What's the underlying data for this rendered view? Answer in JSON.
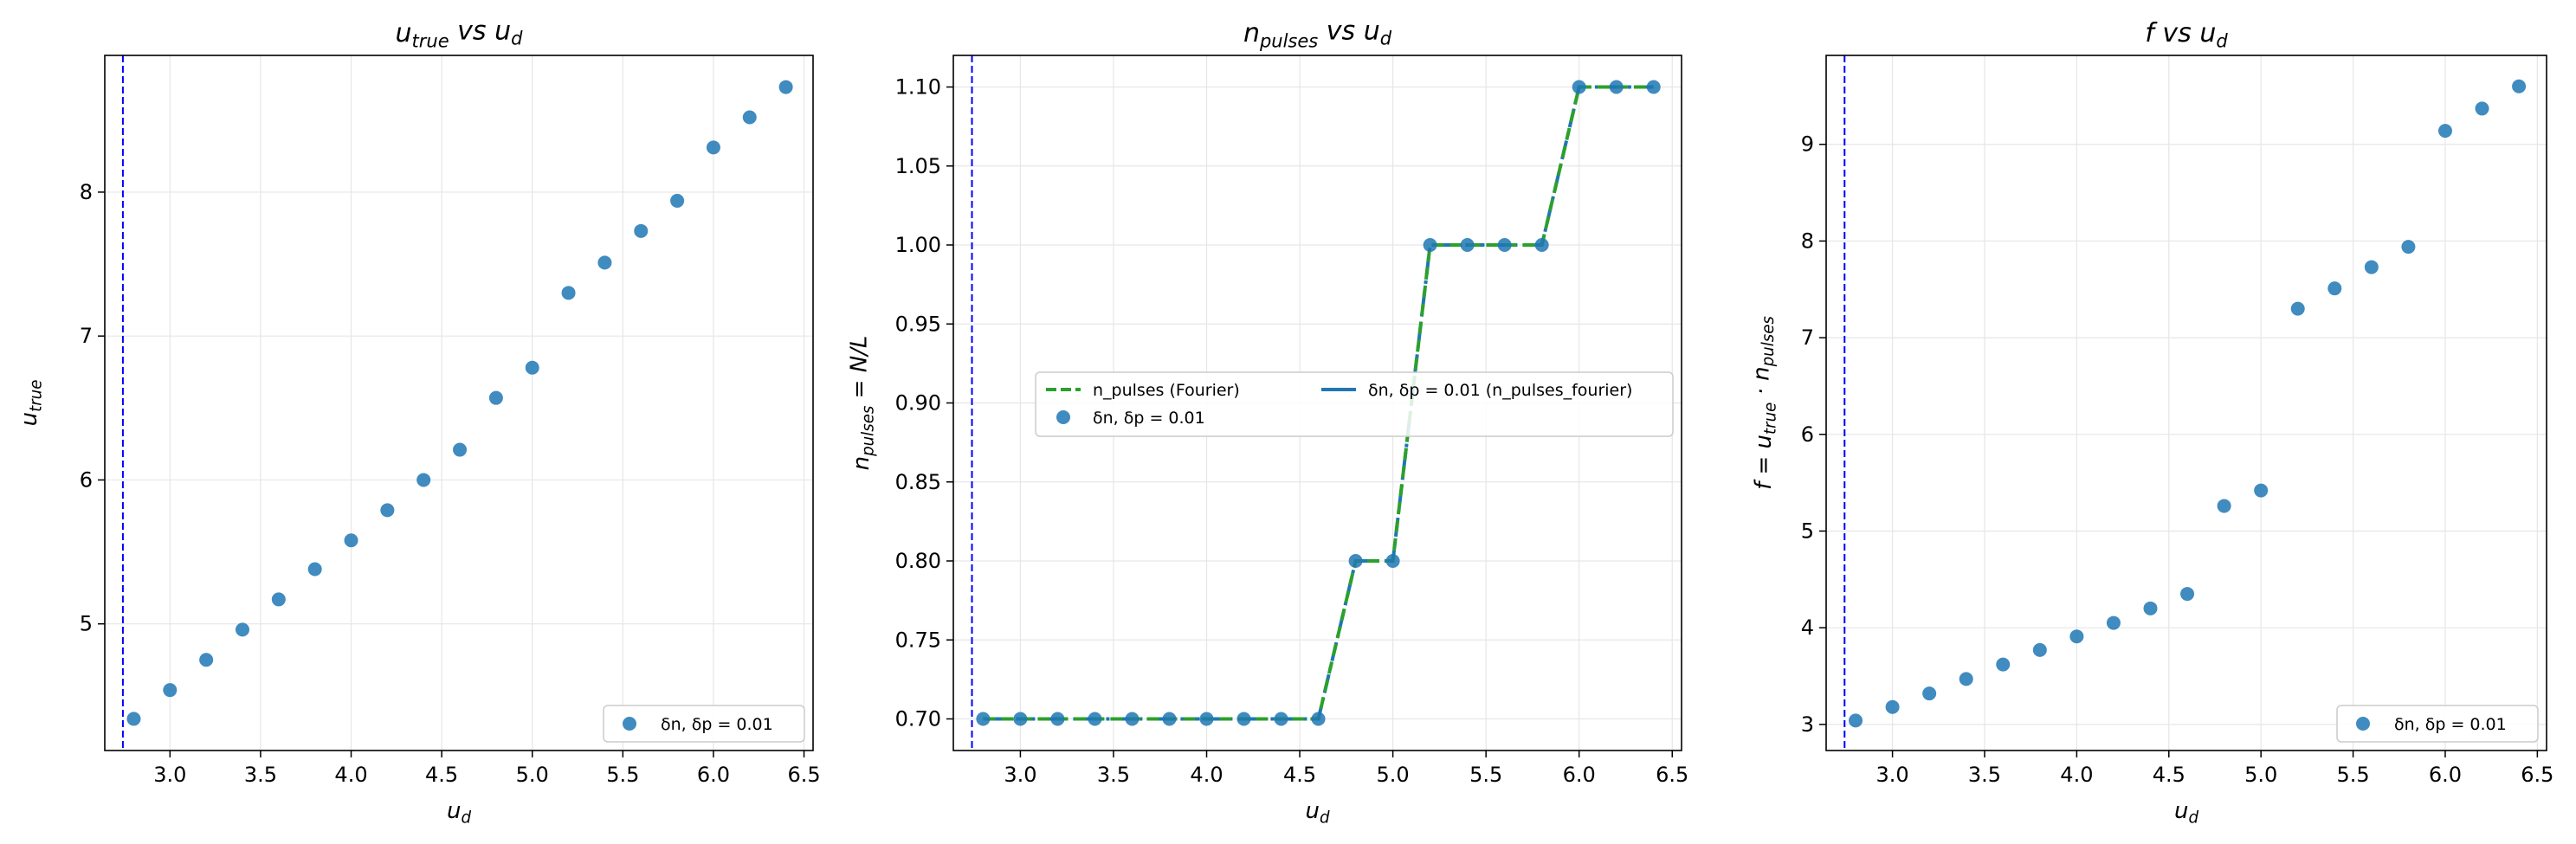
{
  "colors": {
    "scatter": "#1f77b4",
    "fourier": "#2ca02c",
    "vline": "#0000ff",
    "grid": "#e6e6e6"
  },
  "chart_data": [
    {
      "type": "scatter",
      "title": {
        "main": "u",
        "sub": "true",
        "rest": " vs u",
        "sub2": "d"
      },
      "xlabel": {
        "main": "u",
        "sub": "d"
      },
      "ylabel": {
        "main": "u",
        "sub": "true"
      },
      "xlim": [
        2.64,
        6.55
      ],
      "ylim": [
        4.12,
        8.95
      ],
      "xticks": [
        3.0,
        3.5,
        4.0,
        4.5,
        5.0,
        5.5,
        6.0,
        6.5
      ],
      "yticks": [
        5,
        6,
        7,
        8
      ],
      "xtick_labels": [
        "3.0",
        "3.5",
        "4.0",
        "4.5",
        "5.0",
        "5.5",
        "6.0",
        "6.5"
      ],
      "ytick_labels": [
        "5",
        "6",
        "7",
        "8"
      ],
      "vline_x": 2.74,
      "grid": true,
      "legend_position": "lower right",
      "series": [
        {
          "name": "δn, δp = 0.01",
          "x": [
            2.8,
            3.0,
            3.2,
            3.4,
            3.6,
            3.8,
            4.0,
            4.2,
            4.4,
            4.6,
            4.8,
            5.0,
            5.2,
            5.4,
            5.6,
            5.8,
            6.0,
            6.2,
            6.4
          ],
          "y": [
            4.34,
            4.54,
            4.75,
            4.96,
            5.17,
            5.38,
            5.58,
            5.79,
            6.0,
            6.21,
            6.57,
            6.78,
            7.3,
            7.51,
            7.73,
            7.94,
            8.31,
            8.52,
            8.73
          ]
        }
      ]
    },
    {
      "type": "line",
      "title": {
        "main": "n",
        "sub": "pulses",
        "rest": " vs u",
        "sub2": "d"
      },
      "xlabel": {
        "main": "u",
        "sub": "d"
      },
      "ylabel": {
        "main": "n",
        "sub": "pulses",
        "rest": " = N/L"
      },
      "xlim": [
        2.64,
        6.55
      ],
      "ylim": [
        0.68,
        1.12
      ],
      "xticks": [
        3.0,
        3.5,
        4.0,
        4.5,
        5.0,
        5.5,
        6.0,
        6.5
      ],
      "yticks": [
        0.7,
        0.75,
        0.8,
        0.85,
        0.9,
        0.95,
        1.0,
        1.05,
        1.1
      ],
      "xtick_labels": [
        "3.0",
        "3.5",
        "4.0",
        "4.5",
        "5.0",
        "5.5",
        "6.0",
        "6.5"
      ],
      "ytick_labels": [
        "0.70",
        "0.75",
        "0.80",
        "0.85",
        "0.90",
        "0.95",
        "1.00",
        "1.05",
        "1.10"
      ],
      "vline_x": 2.74,
      "grid": true,
      "legend_position": "center",
      "legend_labels": {
        "fourier": "n_pulses (Fourier)",
        "line": "δn, δp = 0.01 (n_pulses_fourier)",
        "scatter": "δn, δp = 0.01"
      },
      "x": [
        2.8,
        3.0,
        3.2,
        3.4,
        3.6,
        3.8,
        4.0,
        4.2,
        4.4,
        4.6,
        4.8,
        5.0,
        5.2,
        5.4,
        5.6,
        5.8,
        6.0,
        6.2,
        6.4
      ],
      "y": [
        0.7,
        0.7,
        0.7,
        0.7,
        0.7,
        0.7,
        0.7,
        0.7,
        0.7,
        0.7,
        0.8,
        0.8,
        1.0,
        1.0,
        1.0,
        1.0,
        1.1,
        1.1,
        1.1
      ]
    },
    {
      "type": "scatter",
      "title": {
        "main": "f",
        "sub": "",
        "rest": " vs u",
        "sub2": "d"
      },
      "xlabel": {
        "main": "u",
        "sub": "d"
      },
      "ylabel": {
        "main": "f = u",
        "sub": "true",
        "rest": " · n",
        "sub2": "pulses"
      },
      "xlim": [
        2.64,
        6.55
      ],
      "ylim": [
        2.73,
        9.92
      ],
      "xticks": [
        3.0,
        3.5,
        4.0,
        4.5,
        5.0,
        5.5,
        6.0,
        6.5
      ],
      "yticks": [
        3,
        4,
        5,
        6,
        7,
        8,
        9
      ],
      "xtick_labels": [
        "3.0",
        "3.5",
        "4.0",
        "4.5",
        "5.0",
        "5.5",
        "6.0",
        "6.5"
      ],
      "ytick_labels": [
        "3",
        "4",
        "5",
        "6",
        "7",
        "8",
        "9"
      ],
      "vline_x": 2.74,
      "grid": true,
      "legend_position": "lower right",
      "series": [
        {
          "name": "δn, δp = 0.01",
          "x": [
            2.8,
            3.0,
            3.2,
            3.4,
            3.6,
            3.8,
            4.0,
            4.2,
            4.4,
            4.6,
            4.8,
            5.0,
            5.2,
            5.4,
            5.6,
            5.8,
            6.0,
            6.2,
            6.4
          ],
          "y": [
            3.04,
            3.18,
            3.32,
            3.47,
            3.62,
            3.77,
            3.91,
            4.05,
            4.2,
            4.35,
            5.26,
            5.42,
            7.3,
            7.51,
            7.73,
            7.94,
            9.14,
            9.37,
            9.6
          ]
        }
      ]
    }
  ]
}
